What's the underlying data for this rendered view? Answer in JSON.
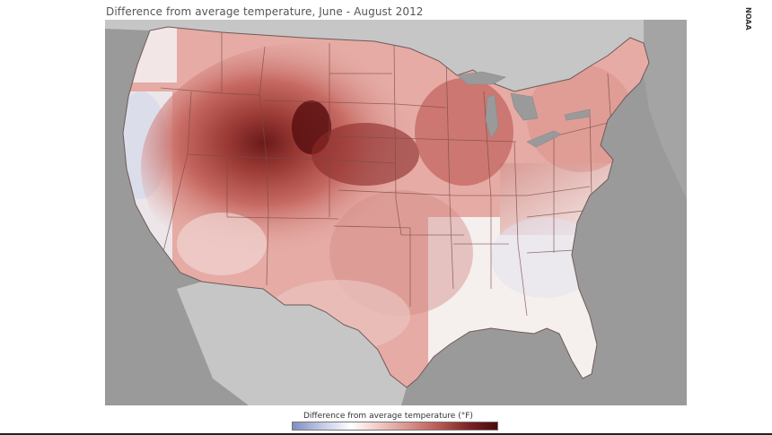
{
  "map": {
    "title": "Difference from average temperature, June - August 2012",
    "credit": "NOAA",
    "legend_title": "Difference from average temperature (°F)",
    "colors": {
      "ocean": "#9a9a9a",
      "land_outside": "#c6c6c6",
      "cool": "#9aa6cf",
      "neutral": "#f4f0ef",
      "warm_light": "#ecc2be",
      "warm_mid": "#d4847d",
      "warm_dark": "#a2433d",
      "warm_darkest": "#5a0f10",
      "state_line": "#7a4a48"
    },
    "legend_scale": [
      "#7f8dc4",
      "#c3cae4",
      "#ffffff",
      "#efc6c2",
      "#d98f88",
      "#b85a53",
      "#7d2424",
      "#4a0a0b"
    ]
  }
}
